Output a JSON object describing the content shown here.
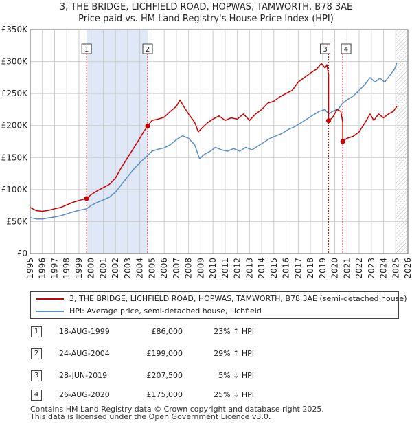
{
  "title": "3, THE BRIDGE, LICHFIELD ROAD, HOPWAS, TAMWORTH, B78 3AE",
  "subtitle": "Price paid vs. HM Land Registry's House Price Index (HPI)",
  "colors": {
    "property": "#cc0000",
    "hpi": "#5b8fc9",
    "shade": "#dfe8f7",
    "grid": "#cccccc"
  },
  "chart_data": {
    "type": "line",
    "xlim": [
      1995,
      2026
    ],
    "ylim": [
      0,
      350000
    ],
    "y_ticks": [
      {
        "value": 0,
        "label": "£0"
      },
      {
        "value": 50000,
        "label": "£50K"
      },
      {
        "value": 100000,
        "label": "£100K"
      },
      {
        "value": 150000,
        "label": "£150K"
      },
      {
        "value": 200000,
        "label": "£200K"
      },
      {
        "value": 250000,
        "label": "£250K"
      },
      {
        "value": 300000,
        "label": "£300K"
      },
      {
        "value": 350000,
        "label": "£350K"
      }
    ],
    "x_ticks": [
      1995,
      1996,
      1997,
      1998,
      1999,
      2000,
      2001,
      2002,
      2003,
      2004,
      2005,
      2006,
      2007,
      2008,
      2009,
      2010,
      2011,
      2012,
      2013,
      2014,
      2015,
      2016,
      2017,
      2018,
      2019,
      2020,
      2021,
      2022,
      2023,
      2024,
      2025,
      2026
    ],
    "shaded_ranges": [
      [
        1999.63,
        2004.64
      ]
    ],
    "forecast_start": 2025.0,
    "series": [
      {
        "name": "3, THE BRIDGE, LICHFIELD ROAD, HOPWAS, TAMWORTH, B78 3AE (semi-detached house)",
        "color": "#cc0000",
        "points": [
          [
            1995.0,
            72000
          ],
          [
            1995.5,
            67000
          ],
          [
            1996.0,
            66000
          ],
          [
            1996.5,
            67500
          ],
          [
            1997.0,
            70000
          ],
          [
            1997.5,
            72000
          ],
          [
            1998.0,
            76000
          ],
          [
            1998.5,
            80000
          ],
          [
            1999.0,
            83000
          ],
          [
            1999.63,
            86000
          ],
          [
            2000.0,
            92000
          ],
          [
            2000.5,
            98000
          ],
          [
            2001.0,
            103000
          ],
          [
            2001.5,
            108000
          ],
          [
            2002.0,
            118000
          ],
          [
            2002.5,
            135000
          ],
          [
            2003.0,
            150000
          ],
          [
            2003.5,
            165000
          ],
          [
            2004.0,
            180000
          ],
          [
            2004.3,
            190000
          ],
          [
            2004.64,
            199000
          ],
          [
            2005.0,
            208000
          ],
          [
            2005.5,
            210000
          ],
          [
            2006.0,
            213000
          ],
          [
            2006.5,
            222000
          ],
          [
            2007.0,
            230000
          ],
          [
            2007.3,
            240000
          ],
          [
            2007.6,
            230000
          ],
          [
            2008.0,
            218000
          ],
          [
            2008.5,
            205000
          ],
          [
            2008.8,
            190000
          ],
          [
            2009.2,
            198000
          ],
          [
            2009.6,
            205000
          ],
          [
            2010.0,
            210000
          ],
          [
            2010.5,
            215000
          ],
          [
            2011.0,
            208000
          ],
          [
            2011.5,
            212000
          ],
          [
            2012.0,
            210000
          ],
          [
            2012.5,
            218000
          ],
          [
            2013.0,
            208000
          ],
          [
            2013.5,
            218000
          ],
          [
            2014.0,
            225000
          ],
          [
            2014.5,
            235000
          ],
          [
            2015.0,
            238000
          ],
          [
            2015.5,
            245000
          ],
          [
            2016.0,
            250000
          ],
          [
            2016.5,
            255000
          ],
          [
            2017.0,
            268000
          ],
          [
            2017.5,
            275000
          ],
          [
            2018.0,
            282000
          ],
          [
            2018.5,
            288000
          ],
          [
            2018.9,
            297000
          ],
          [
            2019.2,
            290000
          ],
          [
            2019.35,
            295000
          ],
          [
            2019.49,
            280000
          ],
          [
            2019.49,
            207500
          ],
          [
            2019.8,
            212000
          ],
          [
            2020.2,
            225000
          ],
          [
            2020.5,
            222000
          ],
          [
            2020.65,
            205000
          ],
          [
            2020.65,
            175000
          ],
          [
            2021.0,
            180000
          ],
          [
            2021.5,
            183000
          ],
          [
            2022.0,
            190000
          ],
          [
            2022.5,
            205000
          ],
          [
            2022.9,
            218000
          ],
          [
            2023.2,
            208000
          ],
          [
            2023.6,
            218000
          ],
          [
            2024.0,
            212000
          ],
          [
            2024.4,
            218000
          ],
          [
            2024.8,
            222000
          ],
          [
            2025.1,
            230000
          ]
        ]
      },
      {
        "name": "HPI: Average price, semi-detached house, Lichfield",
        "color": "#5b8fc9",
        "points": [
          [
            1995.0,
            56000
          ],
          [
            1995.5,
            54000
          ],
          [
            1996.0,
            54000
          ],
          [
            1996.5,
            55500
          ],
          [
            1997.0,
            57000
          ],
          [
            1997.5,
            59000
          ],
          [
            1998.0,
            62000
          ],
          [
            1998.5,
            65000
          ],
          [
            1999.0,
            67500
          ],
          [
            1999.63,
            70000
          ],
          [
            2000.0,
            75000
          ],
          [
            2000.5,
            80000
          ],
          [
            2001.0,
            84000
          ],
          [
            2001.5,
            88000
          ],
          [
            2002.0,
            96000
          ],
          [
            2002.5,
            108000
          ],
          [
            2003.0,
            120000
          ],
          [
            2003.5,
            132000
          ],
          [
            2004.0,
            142000
          ],
          [
            2004.64,
            153000
          ],
          [
            2005.0,
            160000
          ],
          [
            2005.5,
            163000
          ],
          [
            2006.0,
            165000
          ],
          [
            2006.5,
            170000
          ],
          [
            2007.0,
            178000
          ],
          [
            2007.5,
            184000
          ],
          [
            2008.0,
            180000
          ],
          [
            2008.5,
            170000
          ],
          [
            2008.9,
            148000
          ],
          [
            2009.3,
            155000
          ],
          [
            2009.8,
            160000
          ],
          [
            2010.2,
            166000
          ],
          [
            2010.7,
            162000
          ],
          [
            2011.2,
            160000
          ],
          [
            2011.7,
            164000
          ],
          [
            2012.2,
            160000
          ],
          [
            2012.7,
            166000
          ],
          [
            2013.2,
            162000
          ],
          [
            2013.7,
            168000
          ],
          [
            2014.2,
            174000
          ],
          [
            2014.7,
            180000
          ],
          [
            2015.2,
            184000
          ],
          [
            2015.7,
            188000
          ],
          [
            2016.2,
            194000
          ],
          [
            2016.7,
            198000
          ],
          [
            2017.2,
            204000
          ],
          [
            2017.7,
            210000
          ],
          [
            2018.2,
            216000
          ],
          [
            2018.7,
            222000
          ],
          [
            2019.2,
            225000
          ],
          [
            2019.49,
            218000
          ],
          [
            2019.8,
            222000
          ],
          [
            2020.3,
            226000
          ],
          [
            2020.65,
            235000
          ],
          [
            2021.0,
            240000
          ],
          [
            2021.5,
            246000
          ],
          [
            2022.0,
            255000
          ],
          [
            2022.5,
            265000
          ],
          [
            2022.9,
            275000
          ],
          [
            2023.3,
            268000
          ],
          [
            2023.7,
            274000
          ],
          [
            2024.1,
            268000
          ],
          [
            2024.5,
            278000
          ],
          [
            2024.9,
            288000
          ],
          [
            2025.1,
            298000
          ]
        ]
      }
    ],
    "markers": [
      {
        "label": "1",
        "x": 1999.63,
        "y": 86000
      },
      {
        "label": "2",
        "x": 2004.64,
        "y": 199000
      },
      {
        "label": "3",
        "x": 2019.49,
        "y": 207500
      },
      {
        "label": "4",
        "x": 2020.65,
        "y": 175000
      }
    ]
  },
  "legend": {
    "property_label": "3, THE BRIDGE, LICHFIELD ROAD, HOPWAS, TAMWORTH, B78 3AE (semi-detached house)",
    "hpi_label": "HPI: Average price, semi-detached house, Lichfield"
  },
  "transactions": [
    {
      "num": "1",
      "date": "18-AUG-1999",
      "price": "£86,000",
      "hpi": "23% ↑ HPI"
    },
    {
      "num": "2",
      "date": "24-AUG-2004",
      "price": "£199,000",
      "hpi": "29% ↑ HPI"
    },
    {
      "num": "3",
      "date": "28-JUN-2019",
      "price": "£207,500",
      "hpi": "5% ↓ HPI"
    },
    {
      "num": "4",
      "date": "26-AUG-2020",
      "price": "£175,000",
      "hpi": "25% ↓ HPI"
    }
  ],
  "footer": {
    "line1": "Contains HM Land Registry data © Crown copyright and database right 2025.",
    "line2": "This data is licensed under the Open Government Licence v3.0."
  }
}
